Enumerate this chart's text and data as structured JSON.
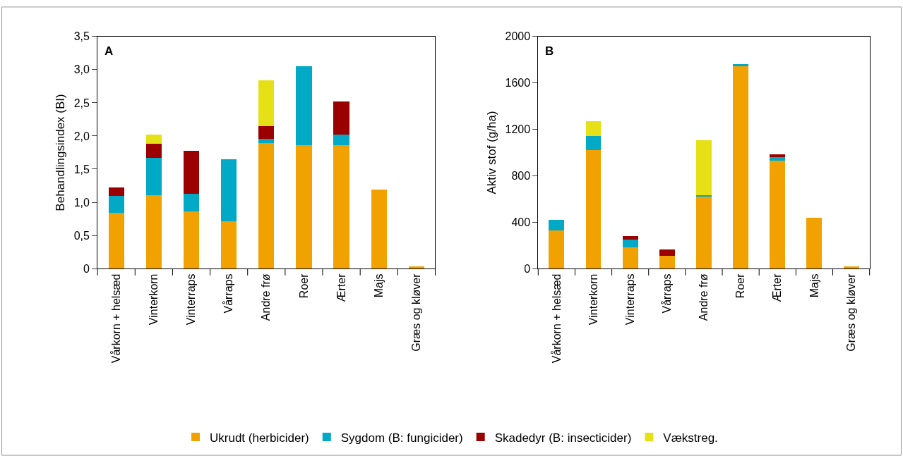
{
  "chart_data": [
    {
      "type": "bar",
      "stacked": true,
      "ylabel": "Behandlingsindex (BI)",
      "annotations": [
        "A"
      ],
      "legend": "bottom",
      "categories": [
        "Vårkorn + helsæd",
        "Vinterkorn",
        "Vinterraps",
        "Vårraps",
        "Andre frø",
        "Roer",
        "Ærter",
        "Majs",
        "Græs og kløver"
      ],
      "ylim": [
        0,
        3.5
      ],
      "yticks": [
        0,
        {
          "value": 0.5,
          "label": "0,5"
        },
        {
          "value": 1,
          "label": "1,0"
        },
        {
          "value": 1.5,
          "label": "1,5"
        },
        {
          "value": 2,
          "label": "2,0"
        },
        {
          "value": 2.5,
          "label": "2,5"
        },
        {
          "value": 3,
          "label": "3,0"
        },
        {
          "value": 3.5,
          "label": "3,5"
        }
      ],
      "series": [
        {
          "name": "Ukrudt (herbicider)",
          "color": "#f2a200",
          "values": [
            0.84,
            1.11,
            0.86,
            0.71,
            1.89,
            1.86,
            1.86,
            1.19,
            0.03
          ]
        },
        {
          "name": "Sygdom (B: fungicider)",
          "color": "#00aac6",
          "values": [
            0.26,
            0.56,
            0.27,
            0.94,
            0.07,
            1.19,
            0.16,
            0,
            0
          ]
        },
        {
          "name": "Skadedyr (B: insecticider)",
          "color": "#9b0000",
          "values": [
            0.12,
            0.21,
            0.65,
            0,
            0.19,
            0,
            0.5,
            0,
            0
          ]
        },
        {
          "name": "Vækstreg.",
          "color": "#e6e016",
          "values": [
            0,
            0.14,
            0,
            0,
            0.69,
            0,
            0,
            0,
            0
          ]
        }
      ]
    },
    {
      "type": "bar",
      "stacked": true,
      "ylabel": "Aktiv stof (g/ha)",
      "annotations": [
        "B"
      ],
      "legend": "bottom",
      "categories": [
        "Vårkorn + helsæd",
        "Vinterkorn",
        "Vinterraps",
        "Vårraps",
        "Andre frø",
        "Roer",
        "Ærter",
        "Majs",
        "Græs og kløver"
      ],
      "ylim": [
        0,
        2000
      ],
      "yticks": [
        0,
        400,
        800,
        1200,
        1600,
        2000
      ],
      "series": [
        {
          "name": "Ukrudt (herbicider)",
          "color": "#f2a200",
          "values": [
            329,
            1020,
            182,
            110,
            622,
            1745,
            930,
            437,
            20
          ]
        },
        {
          "name": "Sygdom (B: fungicider)",
          "color": "#00aac6",
          "values": [
            91,
            123,
            69,
            0,
            13,
            20,
            29,
            0,
            0
          ]
        },
        {
          "name": "Skadedyr (B: insecticider)",
          "color": "#9b0000",
          "values": [
            0,
            0,
            26,
            57,
            0,
            0,
            25,
            0,
            0
          ]
        },
        {
          "name": "Vækstreg.",
          "color": "#e6e016",
          "values": [
            0,
            130,
            0,
            0,
            473,
            0,
            0,
            0,
            0
          ]
        }
      ]
    }
  ]
}
